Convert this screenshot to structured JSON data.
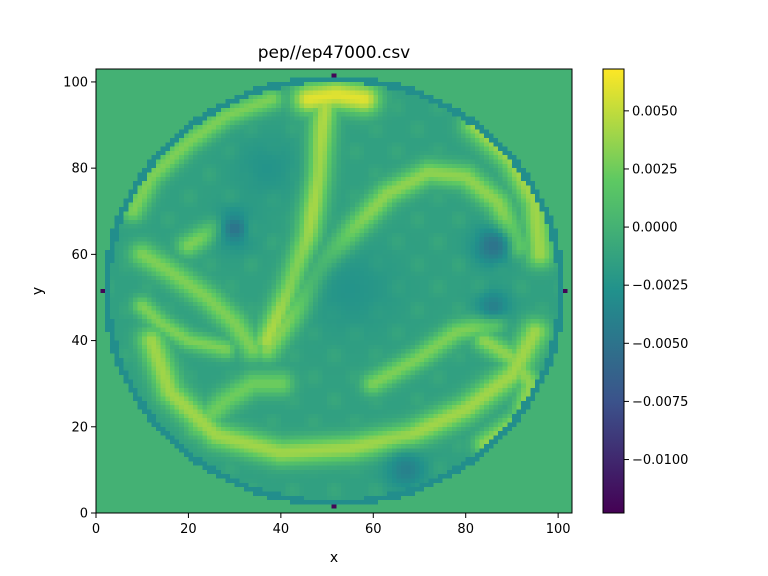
{
  "chart_data": {
    "type": "heatmap",
    "title": "pep//ep47000.csv",
    "xlabel": "x",
    "ylabel": "y",
    "xlim": [
      0,
      103
    ],
    "ylim": [
      0,
      103
    ],
    "x_ticks": [
      0,
      20,
      40,
      60,
      80,
      100
    ],
    "y_ticks": [
      0,
      20,
      40,
      60,
      80,
      100
    ],
    "x_tick_labels": [
      "0",
      "20",
      "40",
      "60",
      "80",
      "100"
    ],
    "y_tick_labels": [
      "0",
      "20",
      "40",
      "60",
      "80",
      "100"
    ],
    "grid_shape": [
      103,
      103
    ],
    "domain": {
      "shape": "circle",
      "center": [
        51.5,
        51.5
      ],
      "radius": 50
    },
    "background_value": 0.0,
    "colormap": "viridis",
    "colormap_stops": [
      "#440154",
      "#3b528b",
      "#21918c",
      "#5ec962",
      "#fde725"
    ],
    "colorbar": {
      "vmin": -0.0123,
      "vmax": 0.0068,
      "ticks": [
        -0.01,
        -0.0075,
        -0.005,
        -0.0025,
        0.0,
        0.0025,
        0.005
      ],
      "tick_labels": [
        "−0.0100",
        "−0.0075",
        "−0.0050",
        "−0.0025",
        "0.0000",
        "0.0025",
        "0.0050"
      ]
    },
    "features": {
      "ring_boundary_value": -0.003,
      "interior_base_value": -0.0015,
      "filaments": [
        {
          "value": 0.004,
          "width": 2.2,
          "points": [
            [
              12,
              40
            ],
            [
              16,
              28
            ],
            [
              26,
              18
            ],
            [
              40,
              14
            ],
            [
              55,
              15
            ],
            [
              68,
              18
            ],
            [
              80,
              24
            ],
            [
              90,
              32
            ],
            [
              95,
              42
            ]
          ]
        },
        {
          "value": 0.0035,
          "width": 2.0,
          "points": [
            [
              37,
              38
            ],
            [
              44,
              48
            ],
            [
              50,
              58
            ],
            [
              56,
              66
            ],
            [
              63,
              74
            ],
            [
              72,
              79
            ],
            [
              80,
              78
            ],
            [
              87,
              72
            ],
            [
              91,
              62
            ]
          ]
        },
        {
          "value": 0.0045,
          "width": 2.0,
          "points": [
            [
              37,
              40
            ],
            [
              42,
              52
            ],
            [
              46,
              64
            ],
            [
              48,
              78
            ],
            [
              49,
              90
            ],
            [
              50,
              97
            ]
          ]
        },
        {
          "value": 0.006,
          "width": 2.5,
          "points": [
            [
              46,
              96
            ],
            [
              52,
              97
            ],
            [
              58,
              96
            ]
          ]
        },
        {
          "value": 0.003,
          "width": 2.0,
          "points": [
            [
              34,
              38
            ],
            [
              30,
              44
            ],
            [
              24,
              50
            ],
            [
              16,
              56
            ],
            [
              10,
              60
            ]
          ]
        },
        {
          "value": 0.003,
          "width": 1.8,
          "points": [
            [
              8,
              70
            ],
            [
              12,
              78
            ],
            [
              20,
              86
            ],
            [
              28,
              92
            ],
            [
              38,
              96
            ]
          ]
        },
        {
          "value": 0.004,
          "width": 2.2,
          "points": [
            [
              82,
              90
            ],
            [
              90,
              82
            ],
            [
              95,
              72
            ],
            [
              96,
              60
            ]
          ]
        },
        {
          "value": 0.003,
          "width": 1.8,
          "points": [
            [
              20,
              62
            ],
            [
              26,
              66
            ],
            [
              32,
              66
            ]
          ]
        },
        {
          "value": 0.0035,
          "width": 1.8,
          "points": [
            [
              84,
              40
            ],
            [
              90,
              36
            ],
            [
              94,
              30
            ],
            [
              92,
              22
            ],
            [
              84,
              16
            ]
          ]
        },
        {
          "value": 0.003,
          "width": 1.8,
          "points": [
            [
              60,
              30
            ],
            [
              70,
              36
            ],
            [
              78,
              42
            ],
            [
              86,
              44
            ]
          ]
        },
        {
          "value": 0.0025,
          "width": 2.0,
          "points": [
            [
              22,
              20
            ],
            [
              28,
              26
            ],
            [
              34,
              30
            ],
            [
              40,
              30
            ]
          ]
        },
        {
          "value": 0.003,
          "width": 1.6,
          "points": [
            [
              10,
              48
            ],
            [
              14,
              44
            ],
            [
              20,
              40
            ],
            [
              28,
              38
            ]
          ]
        }
      ],
      "eddies": [
        {
          "center": [
            30,
            66
          ],
          "radius": 3,
          "value": -0.005
        },
        {
          "center": [
            86,
            62
          ],
          "radius": 3,
          "value": -0.005
        },
        {
          "center": [
            67,
            10
          ],
          "radius": 3,
          "value": -0.004
        },
        {
          "center": [
            86,
            48
          ],
          "radius": 2.5,
          "value": -0.004
        },
        {
          "center": [
            55,
            52
          ],
          "radius": 7,
          "value": -0.0025
        },
        {
          "center": [
            37,
            80
          ],
          "radius": 5,
          "value": -0.0025
        }
      ],
      "dots": [
        [
          51,
          101
        ],
        [
          51,
          1
        ],
        [
          1,
          51
        ],
        [
          101,
          51
        ]
      ],
      "dot_value": -0.012
    }
  }
}
